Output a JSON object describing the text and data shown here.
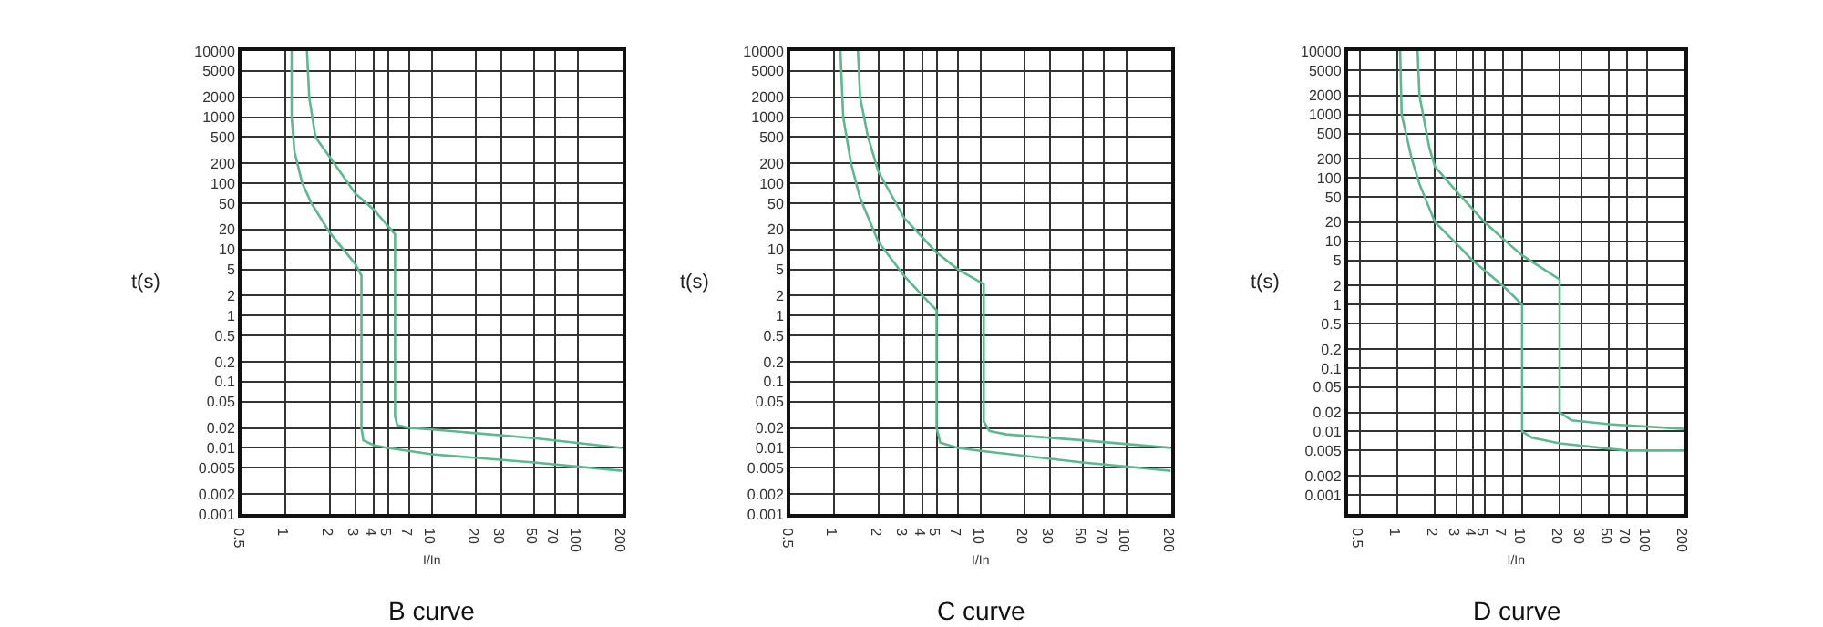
{
  "chart_data": [
    {
      "type": "line",
      "title": "B curve",
      "xlabel": "I/In",
      "ylabel": "t(s)",
      "log": "xy",
      "grid": true,
      "xlim": [
        0.5,
        200
      ],
      "ylim": [
        0.001,
        10000
      ],
      "xticks": [
        0.5,
        1,
        2,
        3,
        4,
        5,
        7,
        10,
        20,
        30,
        50,
        70,
        100,
        200
      ],
      "yticks": [
        10000,
        5000,
        2000,
        1000,
        500,
        200,
        100,
        50,
        20,
        10,
        5,
        2,
        1,
        0.5,
        0.2,
        0.1,
        0.05,
        0.02,
        0.01,
        0.005,
        0.002,
        0.001
      ],
      "series": [
        {
          "color": "#5cb88e",
          "x": [
            1.1,
            1.1,
            1.15,
            1.3,
            1.5,
            2,
            3,
            3.3,
            3.3,
            3.4,
            4,
            5,
            10,
            50,
            200
          ],
          "values": [
            10000,
            1000,
            300,
            100,
            50,
            18,
            6,
            4,
            0.02,
            0.013,
            0.011,
            0.01,
            0.008,
            0.006,
            0.0045
          ]
        },
        {
          "color": "#5cb88e",
          "x": [
            1.4,
            1.45,
            1.6,
            2,
            3,
            4,
            5.6,
            5.6,
            5.8,
            7,
            10,
            50,
            200
          ],
          "values": [
            10000,
            2000,
            500,
            250,
            70,
            40,
            17,
            0.03,
            0.022,
            0.02,
            0.019,
            0.014,
            0.01
          ]
        }
      ]
    },
    {
      "type": "line",
      "title": "C curve",
      "xlabel": "I/In",
      "ylabel": "t(s)",
      "log": "xy",
      "grid": true,
      "xlim": [
        0.5,
        200
      ],
      "ylim": [
        0.001,
        10000
      ],
      "xticks": [
        0.5,
        1,
        2,
        3,
        4,
        5,
        7,
        10,
        20,
        30,
        50,
        70,
        100,
        200
      ],
      "yticks": [
        10000,
        5000,
        2000,
        1000,
        500,
        200,
        100,
        50,
        20,
        10,
        5,
        2,
        1,
        0.5,
        0.2,
        0.1,
        0.05,
        0.02,
        0.01,
        0.005,
        0.002,
        0.001
      ],
      "series": [
        {
          "color": "#5cb88e",
          "x": [
            1.1,
            1.15,
            1.3,
            1.5,
            2,
            3,
            4,
            5,
            5,
            5.3,
            7,
            10,
            50,
            200
          ],
          "values": [
            10000,
            1000,
            200,
            60,
            13,
            4,
            2,
            1.2,
            0.02,
            0.012,
            0.01,
            0.009,
            0.006,
            0.0045
          ]
        },
        {
          "color": "#5cb88e",
          "x": [
            1.45,
            1.5,
            1.7,
            2,
            3,
            5,
            7,
            10.5,
            10.5,
            11.5,
            15,
            50,
            200
          ],
          "values": [
            10000,
            2000,
            500,
            150,
            30,
            9,
            5,
            3,
            0.025,
            0.018,
            0.016,
            0.013,
            0.01
          ]
        }
      ]
    },
    {
      "type": "line",
      "title": "D curve",
      "xlabel": "I/In",
      "ylabel": "t(s)",
      "log": "xy",
      "grid": true,
      "xlim": [
        0.4,
        200
      ],
      "ylim": [
        0.0005,
        10000
      ],
      "xticks": [
        0.5,
        1,
        2,
        3,
        4,
        5,
        7,
        10,
        20,
        30,
        50,
        70,
        100,
        200
      ],
      "yticks": [
        10000,
        5000,
        2000,
        1000,
        500,
        200,
        100,
        50,
        20,
        10,
        5,
        2,
        1,
        0.5,
        0.2,
        0.1,
        0.05,
        0.02,
        0.01,
        0.005,
        0.002,
        0.001
      ],
      "series": [
        {
          "color": "#5cb88e",
          "x": [
            1.05,
            1.08,
            1.3,
            1.5,
            2,
            3,
            4,
            7,
            10,
            10,
            12,
            20,
            70,
            200
          ],
          "values": [
            10000,
            1000,
            200,
            80,
            20,
            9,
            5,
            2,
            1,
            0.01,
            0.008,
            0.0065,
            0.005,
            0.005
          ]
        },
        {
          "color": "#5cb88e",
          "x": [
            1.45,
            1.5,
            1.8,
            2,
            3,
            5,
            7,
            10,
            20,
            20,
            25,
            50,
            200
          ],
          "values": [
            10000,
            2000,
            300,
            150,
            60,
            20,
            11,
            6,
            2.5,
            0.02,
            0.015,
            0.013,
            0.011
          ]
        }
      ]
    }
  ]
}
